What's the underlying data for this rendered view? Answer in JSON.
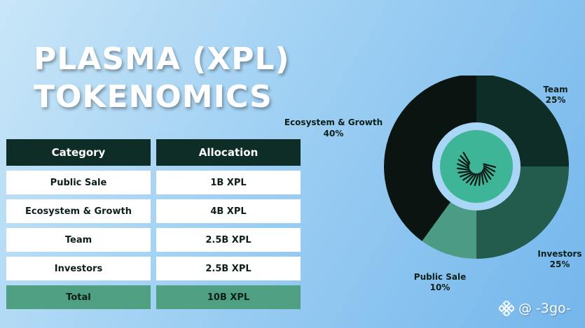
{
  "title": {
    "line1": "PLASMA (XPL)",
    "line2": "TOKENOMICS"
  },
  "table": {
    "headers": [
      "Category",
      "Allocation"
    ],
    "rows": [
      {
        "category": "Public Sale",
        "allocation": "1B XPL"
      },
      {
        "category": "Ecosystem & Growth",
        "allocation": "4B XPL"
      },
      {
        "category": "Team",
        "allocation": "2.5B XPL"
      },
      {
        "category": "Investors",
        "allocation": "2.5B XPL"
      }
    ],
    "total": {
      "category": "Total",
      "allocation": "10B XPL"
    }
  },
  "chart_data": {
    "type": "pie",
    "style": "donut",
    "slices": [
      {
        "label": "Team",
        "value": 25,
        "value_label": "25%",
        "color": "#0f2d27"
      },
      {
        "label": "Investors",
        "value": 25,
        "value_label": "25%",
        "color": "#235c4c"
      },
      {
        "label": "Public Sale",
        "value": 10,
        "value_label": "10%",
        "color": "#4c9b84"
      },
      {
        "label": "Ecosystem & Growth",
        "value": 40,
        "value_label": "40%",
        "color": "#0a1512"
      }
    ],
    "center_logo": "plasma-logo",
    "center_colors": {
      "ring": "#a9d6f6",
      "disc": "#3db596"
    }
  },
  "watermark": {
    "text": "@ -3go-",
    "icon": "binance-icon"
  }
}
